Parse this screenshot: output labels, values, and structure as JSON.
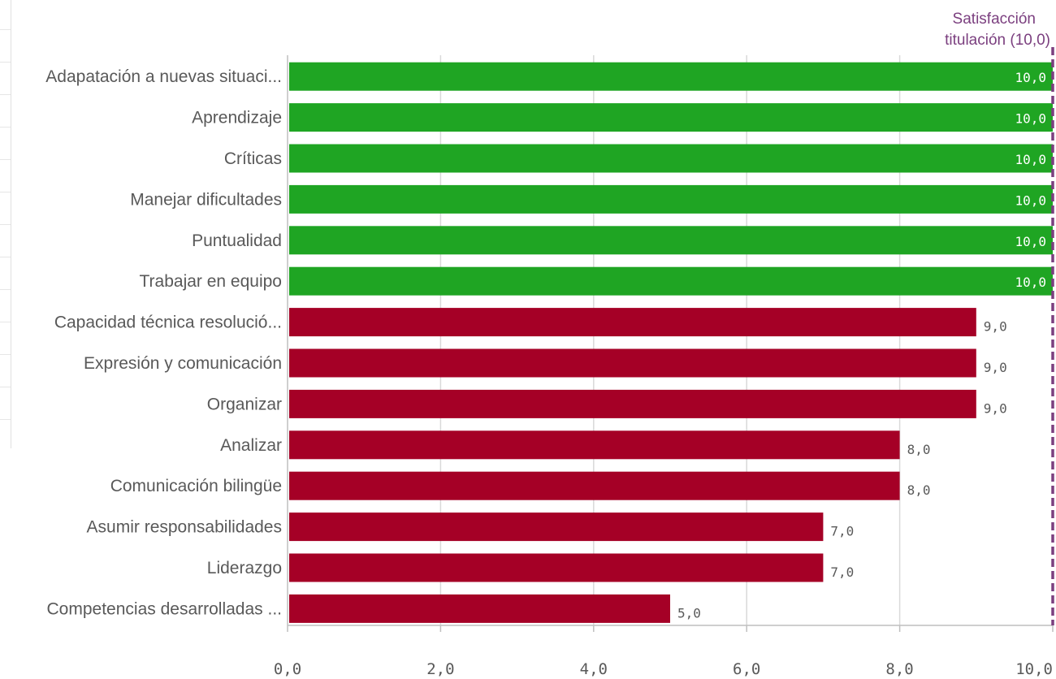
{
  "chart_data": {
    "type": "bar",
    "orientation": "horizontal",
    "categories": [
      "Adapatación a nuevas situaci...",
      "Aprendizaje",
      "Críticas",
      "Manejar dificultades",
      "Puntualidad",
      "Trabajar en equipo",
      "Capacidad técnica resolució...",
      "Expresión y comunicación",
      "Organizar",
      "Analizar",
      "Comunicación bilingüe",
      "Asumir responsabilidades",
      "Liderazgo",
      "Competencias desarrolladas ..."
    ],
    "values": [
      10,
      10,
      10,
      10,
      10,
      10,
      9,
      9,
      9,
      8,
      8,
      7,
      7,
      5
    ],
    "value_labels": [
      "10,0",
      "10,0",
      "10,0",
      "10,0",
      "10,0",
      "10,0",
      "9,0",
      "9,0",
      "9,0",
      "8,0",
      "8,0",
      "7,0",
      "7,0",
      "5,0"
    ],
    "xlim": [
      0,
      10
    ],
    "x_ticks": [
      0,
      2,
      4,
      6,
      8,
      10
    ],
    "x_tick_labels": [
      "0,0",
      "2,0",
      "4,0",
      "6,0",
      "8,0",
      "10,0"
    ],
    "grid": true,
    "reference_line": {
      "value": 10,
      "label_line1": "Satisfacción",
      "label_line2": "titulación (10,0)",
      "style": "dashed",
      "color": "#7b3f7f"
    },
    "colors": {
      "at_or_above_reference": "#1fa523",
      "below_reference": "#a50026",
      "grid": "#d9d9d9",
      "axis": "#bfbfbf",
      "text": "#595959"
    }
  }
}
